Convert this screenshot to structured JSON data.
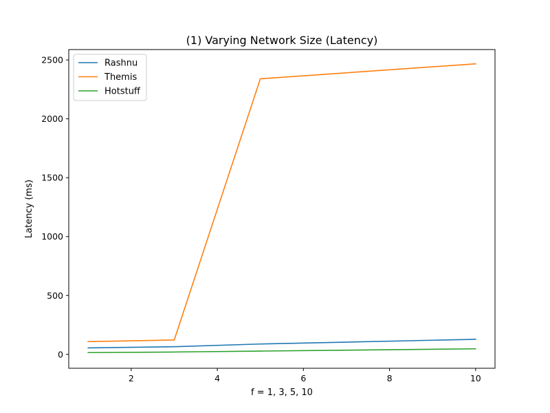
{
  "chart_data": {
    "type": "line",
    "title": "(1) Varying Network Size (Latency)",
    "xlabel": "f = 1, 3, 5, 10",
    "ylabel": "Latency (ms)",
    "x": [
      1,
      3,
      5,
      10
    ],
    "xlim": [
      0.55,
      10.45
    ],
    "ylim": [
      -118,
      2588
    ],
    "xticks": [
      2,
      4,
      6,
      8,
      10
    ],
    "yticks": [
      0,
      500,
      1000,
      1500,
      2000,
      2500
    ],
    "grid": false,
    "legend_position": "upper-left",
    "series": [
      {
        "name": "Rashnu",
        "color": "#1f77b4",
        "values": [
          55,
          65,
          88,
          128
        ]
      },
      {
        "name": "Themis",
        "color": "#ff7f0e",
        "values": [
          108,
          122,
          2340,
          2467
        ]
      },
      {
        "name": "Hotstuff",
        "color": "#2ca02c",
        "values": [
          15,
          20,
          28,
          47
        ]
      }
    ]
  }
}
